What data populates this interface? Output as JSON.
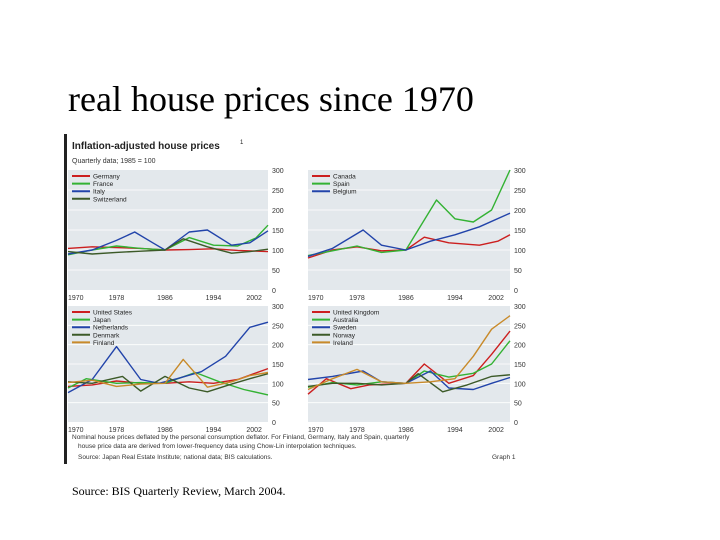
{
  "slide": {
    "title": "real house prices since 1970",
    "source": "Source: BIS Quarterly Review, March 2004."
  },
  "figure": {
    "heading": "Inflation-adjusted house prices",
    "footnote_mark": "1",
    "subheading": "Quarterly data; 1985 = 100",
    "footnote": [
      "Nominal house prices deflated by the personal consumption deflator. For Finland, Germany, Italy and Spain, quarterly",
      "house price data are derived from lower-frequency data using Chow-Lin interpolation techniques."
    ],
    "source_line": "Source: Japan Real Estate Institute; national data; BIS calculations.",
    "graph_label": "Graph 1",
    "colors": {
      "panel_bg": "#e3e8ec",
      "red": "#cc1f1f",
      "green": "#33b233",
      "blue": "#2244aa",
      "darkgreen": "#3c5a28",
      "orange": "#c88a2a"
    }
  },
  "chart_data": [
    {
      "type": "line",
      "title": "Germany, France, Italy, Switzerland",
      "x_ticks": [
        "1970",
        "1978",
        "1986",
        "1994",
        "2002"
      ],
      "y_ticks": [
        "0",
        "50",
        "100",
        "150",
        "200",
        "250",
        "300"
      ],
      "xlim": [
        1970,
        2003
      ],
      "ylim": [
        0,
        300
      ],
      "legend_position": "top-left",
      "series": [
        {
          "name": "Germany",
          "color": "red",
          "x": [
            1970,
            1974,
            1978,
            1982,
            1986,
            1990,
            1994,
            1998,
            2003
          ],
          "y": [
            104,
            108,
            106,
            104,
            100,
            101,
            103,
            99,
            96
          ]
        },
        {
          "name": "France",
          "color": "green",
          "x": [
            1970,
            1974,
            1978,
            1982,
            1986,
            1990,
            1994,
            1998,
            2001,
            2003
          ],
          "y": [
            88,
            100,
            110,
            104,
            100,
            131,
            112,
            110,
            130,
            162
          ]
        },
        {
          "name": "Italy",
          "color": "blue",
          "x": [
            1970,
            1974,
            1978,
            1981,
            1984,
            1986,
            1990,
            1993,
            1997,
            2000,
            2003
          ],
          "y": [
            90,
            100,
            124,
            145,
            118,
            100,
            145,
            150,
            112,
            118,
            148
          ]
        },
        {
          "name": "Switzerland",
          "color": "darkgreen",
          "x": [
            1970,
            1974,
            1978,
            1982,
            1986,
            1989,
            1993,
            1997,
            2000,
            2003
          ],
          "y": [
            96,
            90,
            94,
            97,
            100,
            128,
            108,
            92,
            96,
            102
          ]
        }
      ]
    },
    {
      "type": "line",
      "title": "Canada, Spain, Belgium",
      "x_ticks": [
        "1970",
        "1978",
        "1986",
        "1994",
        "2002"
      ],
      "y_ticks": [
        "0",
        "50",
        "100",
        "150",
        "200",
        "250",
        "300"
      ],
      "xlim": [
        1970,
        2003
      ],
      "ylim": [
        0,
        300
      ],
      "legend_position": "top-left",
      "series": [
        {
          "name": "Canada",
          "color": "red",
          "x": [
            1970,
            1974,
            1978,
            1982,
            1986,
            1989,
            1993,
            1998,
            2001,
            2003
          ],
          "y": [
            80,
            100,
            108,
            98,
            100,
            132,
            118,
            112,
            122,
            138
          ]
        },
        {
          "name": "Spain",
          "color": "green",
          "x": [
            1970,
            1974,
            1978,
            1982,
            1986,
            1991,
            1994,
            1997,
            2000,
            2003
          ],
          "y": [
            86,
            98,
            110,
            94,
            100,
            225,
            178,
            170,
            200,
            300
          ]
        },
        {
          "name": "Belgium",
          "color": "blue",
          "x": [
            1970,
            1974,
            1979,
            1982,
            1986,
            1990,
            1994,
            1998,
            2003
          ],
          "y": [
            84,
            104,
            150,
            112,
            100,
            122,
            138,
            158,
            192
          ]
        }
      ]
    },
    {
      "type": "line",
      "title": "United States, Japan, Netherlands, Denmark, Finland",
      "x_ticks": [
        "1970",
        "1978",
        "1986",
        "1994",
        "2002"
      ],
      "y_ticks": [
        "0",
        "50",
        "100",
        "150",
        "200",
        "250",
        "300"
      ],
      "xlim": [
        1970,
        2003
      ],
      "ylim": [
        0,
        300
      ],
      "legend_position": "top-left",
      "series": [
        {
          "name": "United States",
          "color": "red",
          "x": [
            1970,
            1974,
            1978,
            1982,
            1986,
            1990,
            1994,
            1998,
            2003
          ],
          "y": [
            92,
            96,
            106,
            100,
            100,
            104,
            100,
            110,
            138
          ]
        },
        {
          "name": "Japan",
          "color": "green",
          "x": [
            1970,
            1973,
            1978,
            1982,
            1986,
            1991,
            1995,
            1999,
            2003
          ],
          "y": [
            88,
            112,
            100,
            102,
            100,
            128,
            104,
            84,
            70
          ]
        },
        {
          "name": "Netherlands",
          "color": "blue",
          "x": [
            1970,
            1974,
            1978,
            1982,
            1985,
            1988,
            1992,
            1996,
            2000,
            2003
          ],
          "y": [
            76,
            110,
            195,
            110,
            100,
            112,
            130,
            170,
            245,
            258
          ]
        },
        {
          "name": "Denmark",
          "color": "darkgreen",
          "x": [
            1970,
            1974,
            1979,
            1982,
            1986,
            1990,
            1993,
            1997,
            2000,
            2003
          ],
          "y": [
            104,
            100,
            118,
            80,
            118,
            88,
            78,
            98,
            112,
            125
          ]
        },
        {
          "name": "Finland",
          "color": "orange",
          "x": [
            1970,
            1974,
            1978,
            1982,
            1986,
            1989,
            1993,
            1997,
            2000,
            2003
          ],
          "y": [
            102,
            108,
            92,
            98,
            100,
            162,
            90,
            104,
            120,
            128
          ]
        }
      ]
    },
    {
      "type": "line",
      "title": "United Kingdom, Australia, Sweden, Norway, Ireland",
      "x_ticks": [
        "1970",
        "1978",
        "1986",
        "1994",
        "2002"
      ],
      "y_ticks": [
        "0",
        "50",
        "100",
        "150",
        "200",
        "250",
        "300"
      ],
      "xlim": [
        1970,
        2003
      ],
      "ylim": [
        0,
        300
      ],
      "legend_position": "top-left",
      "series": [
        {
          "name": "United Kingdom",
          "color": "red",
          "x": [
            1970,
            1973,
            1977,
            1980,
            1986,
            1989,
            1993,
            1997,
            2000,
            2003
          ],
          "y": [
            72,
            112,
            86,
            96,
            100,
            150,
            100,
            120,
            175,
            235
          ]
        },
        {
          "name": "Australia",
          "color": "green",
          "x": [
            1970,
            1974,
            1978,
            1982,
            1986,
            1989,
            1993,
            1997,
            2000,
            2003
          ],
          "y": [
            90,
            102,
            96,
            104,
            100,
            132,
            116,
            126,
            150,
            210
          ]
        },
        {
          "name": "Sweden",
          "color": "blue",
          "x": [
            1970,
            1974,
            1979,
            1982,
            1986,
            1990,
            1993,
            1997,
            2000,
            2003
          ],
          "y": [
            110,
            118,
            132,
            104,
            100,
            132,
            88,
            84,
            100,
            115
          ]
        },
        {
          "name": "Norway",
          "color": "darkgreen",
          "x": [
            1970,
            1974,
            1978,
            1982,
            1986,
            1988,
            1992,
            1996,
            2000,
            2003
          ],
          "y": [
            92,
            100,
            100,
            96,
            100,
            125,
            78,
            96,
            118,
            122
          ]
        },
        {
          "name": "Ireland",
          "color": "orange",
          "x": [
            1970,
            1974,
            1978,
            1982,
            1986,
            1990,
            1994,
            1997,
            2000,
            2003
          ],
          "y": [
            84,
            112,
            136,
            104,
            100,
            104,
            112,
            170,
            240,
            275
          ]
        }
      ]
    }
  ]
}
